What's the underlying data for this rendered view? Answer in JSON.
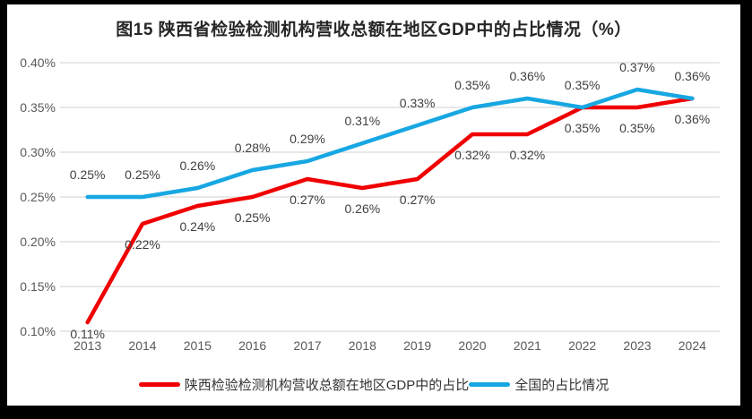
{
  "title": "图15 陕西省检验检测机构营收总额在地区GDP中的占比情况（%）",
  "colors": {
    "frame": "#000000",
    "background": "#ffffff",
    "gridline": "#d9d9d9",
    "axis_text": "#595959",
    "data_label_text": "#404040",
    "title_text": "#262626",
    "legend_text": "#333333"
  },
  "chart_data": {
    "type": "line",
    "title": "图15 陕西省检验检测机构营收总额在地区GDP中的占比情况（%）",
    "categories": [
      "2013",
      "2014",
      "2015",
      "2016",
      "2017",
      "2018",
      "2019",
      "2020",
      "2021",
      "2022",
      "2023",
      "2024"
    ],
    "y_axis": {
      "unit": "%",
      "min": 0.1,
      "max": 0.4,
      "tick_step": 0.05,
      "tick_labels": [
        "0.40%",
        "0.35%",
        "0.30%",
        "0.25%",
        "0.20%",
        "0.15%",
        "0.10%"
      ]
    },
    "grid": true,
    "legend_position": "bottom",
    "series": [
      {
        "name": "陕西检验检测机构营收总额在地区GDP中的占比",
        "color": "#f00000",
        "label_position": "below",
        "values": [
          0.11,
          0.22,
          0.24,
          0.25,
          0.27,
          0.26,
          0.27,
          0.32,
          0.32,
          0.35,
          0.35,
          0.36
        ],
        "point_labels": [
          "0.11%",
          "0.22%",
          "0.24%",
          "0.25%",
          "0.27%",
          "0.26%",
          "0.27%",
          "0.32%",
          "0.32%",
          "0.35%",
          "0.35%",
          "0.36%"
        ]
      },
      {
        "name": "全国的占比情况",
        "color": "#17a7e2",
        "label_position": "above",
        "values": [
          0.25,
          0.25,
          0.26,
          0.28,
          0.29,
          0.31,
          0.33,
          0.35,
          0.36,
          0.35,
          0.37,
          0.36
        ],
        "point_labels": [
          "0.25%",
          "0.25%",
          "0.26%",
          "0.28%",
          "0.29%",
          "0.31%",
          "0.33%",
          "0.35%",
          "0.36%",
          "0.35%",
          "0.37%",
          "0.36%"
        ]
      }
    ]
  },
  "legend": {
    "items": [
      {
        "label": "陕西检验检测机构营收总额在地区GDP中的占比"
      },
      {
        "label": "全国的占比情况"
      }
    ]
  }
}
